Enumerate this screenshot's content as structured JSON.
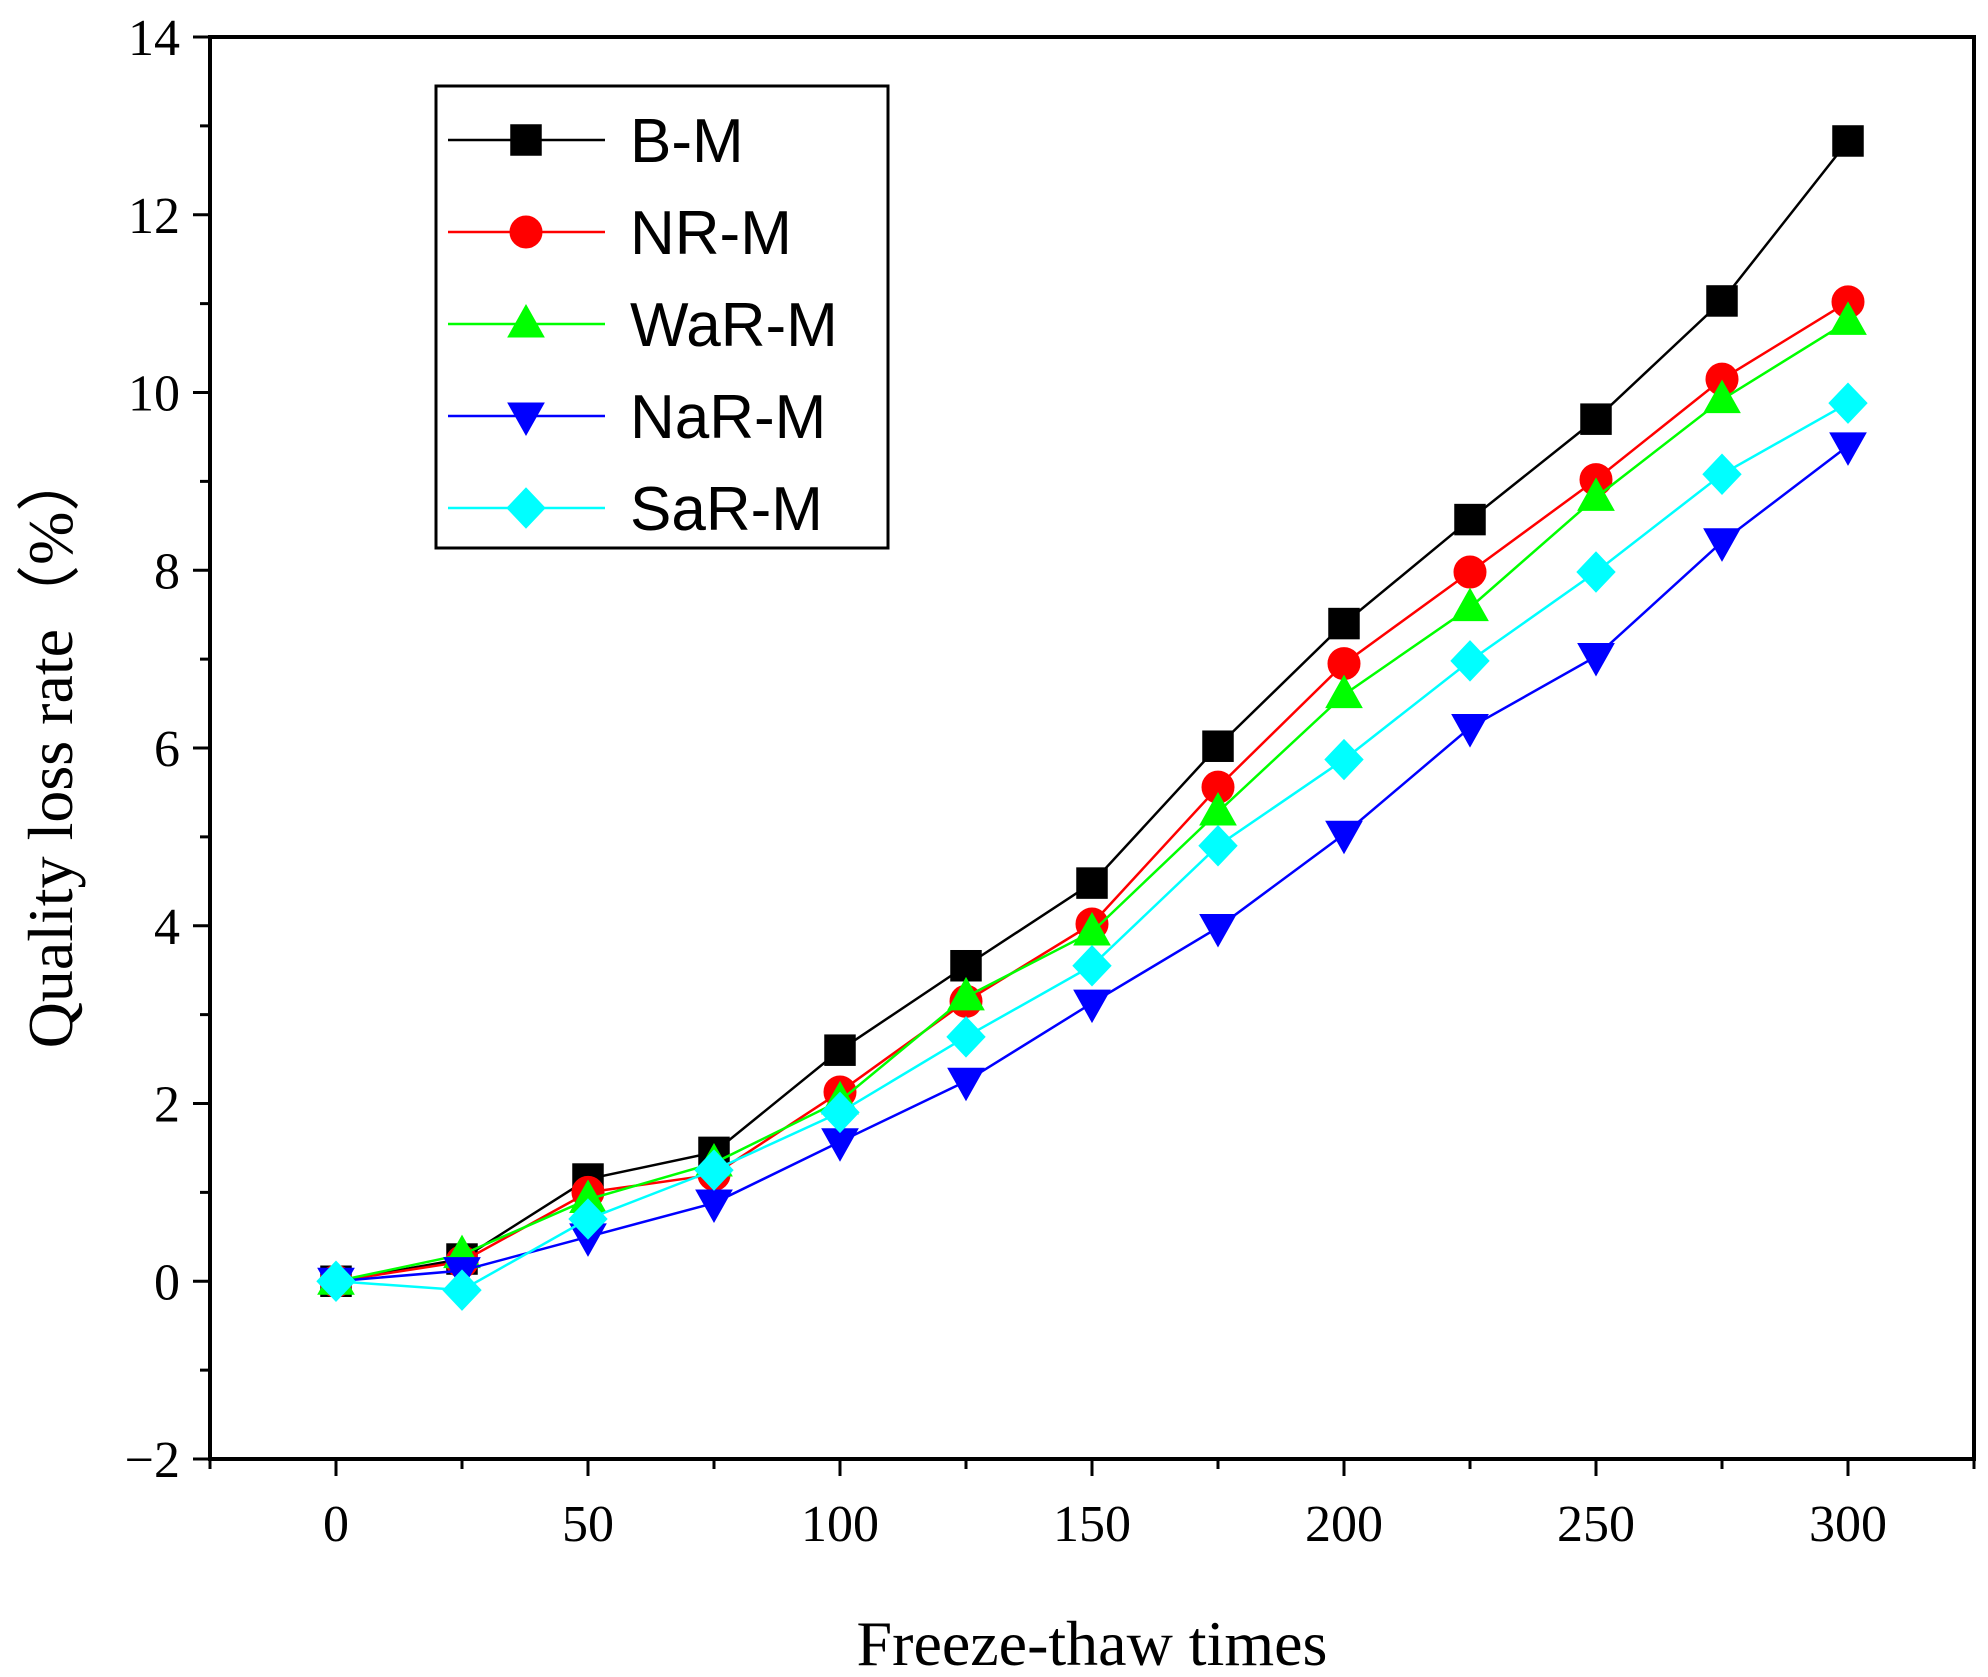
{
  "chart_data": {
    "type": "line",
    "xlabel": "Freeze-thaw times",
    "ylabel": "Quality loss rate（%）",
    "xlim": [
      -25,
      325
    ],
    "ylim": [
      -2,
      14
    ],
    "x_ticks": [
      0,
      50,
      100,
      150,
      200,
      250,
      300
    ],
    "y_ticks": [
      -2,
      0,
      2,
      4,
      6,
      8,
      10,
      12,
      14
    ],
    "y_tick_labels": [
      "−2",
      "0",
      "2",
      "4",
      "6",
      "8",
      "10",
      "12",
      "14"
    ],
    "x": [
      0,
      25,
      50,
      75,
      100,
      125,
      150,
      175,
      200,
      225,
      250,
      275,
      300
    ],
    "legend_position": "top-left",
    "grid": false,
    "series": [
      {
        "name": "B-M",
        "color": "#000000",
        "marker": "square",
        "values": [
          0,
          0.25,
          1.15,
          1.45,
          2.6,
          3.55,
          4.48,
          6.02,
          7.4,
          8.57,
          9.7,
          11.03,
          12.83
        ]
      },
      {
        "name": "NR-M",
        "color": "#ff0000",
        "marker": "circle",
        "values": [
          0,
          0.22,
          1.0,
          1.2,
          2.13,
          3.15,
          4.02,
          5.56,
          6.95,
          7.98,
          9.02,
          10.15,
          11.02
        ]
      },
      {
        "name": "WaR-M",
        "color": "#00ff00",
        "marker": "triangle-up",
        "values": [
          0,
          0.3,
          0.92,
          1.33,
          2.03,
          3.2,
          3.93,
          5.28,
          6.6,
          7.58,
          8.82,
          9.92,
          10.8
        ]
      },
      {
        "name": "NaR-M",
        "color": "#0000ff",
        "marker": "triangle-down",
        "values": [
          0,
          0.12,
          0.5,
          0.88,
          1.57,
          2.25,
          3.13,
          3.98,
          5.03,
          6.23,
          7.03,
          8.32,
          9.4
        ]
      },
      {
        "name": "SaR-M",
        "color": "#00ffff",
        "marker": "diamond",
        "values": [
          0,
          -0.1,
          0.7,
          1.25,
          1.9,
          2.75,
          3.55,
          4.9,
          5.87,
          6.98,
          7.98,
          9.08,
          9.88
        ]
      }
    ]
  }
}
